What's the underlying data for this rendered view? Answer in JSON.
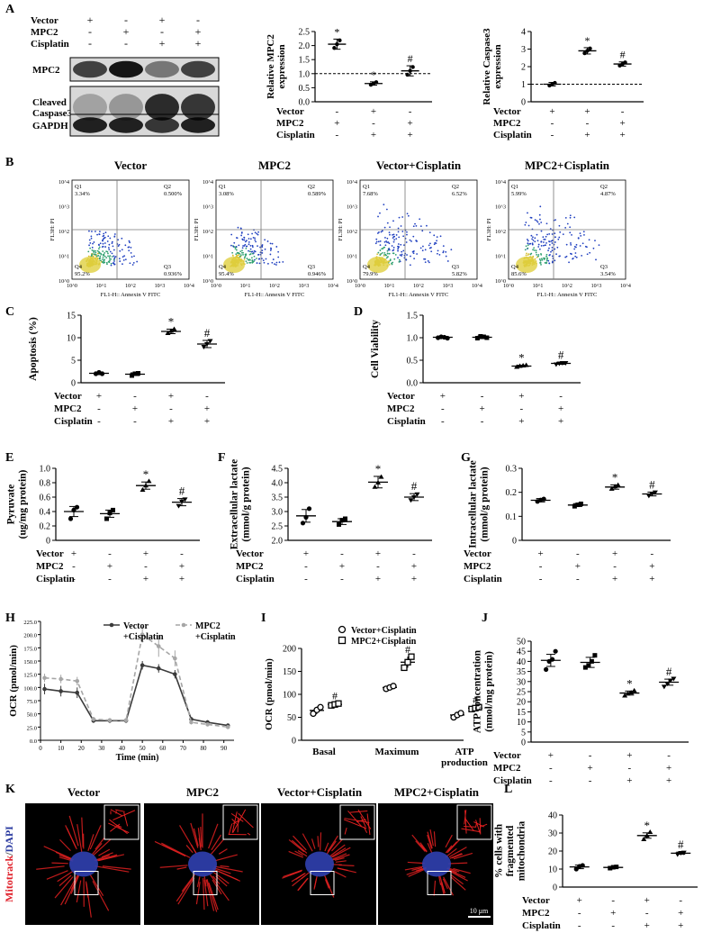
{
  "panels": {
    "A": {
      "letter": "A",
      "condition_labels": [
        "Vector",
        "MPC2",
        "Cisplatin"
      ],
      "blot_matrix": [
        [
          "+",
          "-",
          "+",
          "-"
        ],
        [
          "-",
          "+",
          "-",
          "+"
        ],
        [
          "-",
          "-",
          "+",
          "+"
        ]
      ],
      "blot_rows": [
        "MPC2",
        "Cleaved\nCaspase3",
        "GAPDH"
      ],
      "mpc2_chart": {
        "ylabel": "Relative MPC2\nexpression",
        "yticks": [
          "0.0",
          "0.5",
          "1.0",
          "1.5",
          "2.0",
          "2.5"
        ],
        "ylim": [
          0,
          2.5
        ],
        "values": [
          2.05,
          0.65,
          1.1
        ],
        "errors": [
          0.18,
          0.06,
          0.18
        ],
        "markers": [
          "*",
          "*",
          "#"
        ],
        "refline": 1.0,
        "matrix": [
          [
            "-",
            "+",
            "-"
          ],
          [
            "+",
            "-",
            "+"
          ],
          [
            "-",
            "+",
            "+"
          ]
        ]
      },
      "caspase_chart": {
        "ylabel": "Relative Caspase3\nexpression",
        "yticks": [
          "0",
          "1",
          "2",
          "3",
          "4"
        ],
        "ylim": [
          0,
          4
        ],
        "values": [
          1.0,
          2.9,
          2.15
        ],
        "errors": [
          0.1,
          0.18,
          0.12
        ],
        "markers": [
          "",
          "*",
          "#"
        ],
        "refline": 1.0,
        "matrix": [
          [
            "+",
            "+",
            "-"
          ],
          [
            "-",
            "-",
            "+"
          ],
          [
            "-",
            "+",
            "+"
          ]
        ]
      }
    },
    "B": {
      "letter": "B",
      "plots": [
        {
          "title": "Vector",
          "q1": "3.34%",
          "q2": "0.500%",
          "q4": "95.2%",
          "q3": "0.936%"
        },
        {
          "title": "MPC2",
          "q1": "3.08%",
          "q2": "0.589%",
          "q4": "95.4%",
          "q3": "0.946%"
        },
        {
          "title": "Vector+Cisplatin",
          "q1": "7.68%",
          "q2": "6.52%",
          "q4": "79.9%",
          "q3": "5.82%"
        },
        {
          "title": "MPC2+Cisplatin",
          "q1": "5.99%",
          "q2": "4.87%",
          "q4": "85.6%",
          "q3": "3.54%"
        }
      ],
      "xlabel": "FL1-H:: Annexin V FITC",
      "ylabel": "FL3H: PI",
      "quad_names": [
        "Q1",
        "Q2",
        "Q3",
        "Q4"
      ],
      "yticks": [
        "10^4",
        "10^3",
        "10^2",
        "10^1",
        "10^0"
      ],
      "xticks": [
        "10^0",
        "10^1",
        "10^2",
        "10^3",
        "10^4"
      ]
    },
    "C": {
      "letter": "C",
      "ylabel": "Apoptosis (%)",
      "yticks": [
        "0",
        "5",
        "10",
        "15"
      ],
      "ylim": [
        0,
        15
      ],
      "means": [
        2.1,
        1.9,
        11.4,
        8.6
      ],
      "errors": [
        0.3,
        0.3,
        0.5,
        0.8
      ],
      "markers": [
        "",
        "",
        "*",
        "#"
      ],
      "points": [
        [
          2.0,
          2.3,
          2.0
        ],
        [
          1.6,
          2.0,
          2.1
        ],
        [
          11.0,
          11.5,
          11.9
        ],
        [
          8.0,
          8.6,
          9.3
        ]
      ]
    },
    "D": {
      "letter": "D",
      "ylabel": "Cell Viability",
      "yticks": [
        "0.0",
        "0.5",
        "1.0",
        "1.5"
      ],
      "ylim": [
        0,
        1.5
      ],
      "means": [
        1.01,
        1.01,
        0.37,
        0.43
      ],
      "errors": [
        0.02,
        0.03,
        0.02,
        0.02
      ],
      "markers": [
        "",
        "",
        "*",
        "#"
      ],
      "points": [
        [
          1.0,
          1.02,
          1.01,
          0.99
        ],
        [
          0.99,
          1.03,
          1.02,
          1.0
        ],
        [
          0.35,
          0.37,
          0.38,
          0.39
        ],
        [
          0.41,
          0.43,
          0.44,
          0.44
        ]
      ]
    },
    "E": {
      "letter": "E",
      "ylabel": "Pyruvate\n(ug/mg protein)",
      "yticks": [
        "0",
        "0.2",
        "0.4",
        "0.6",
        "0.8",
        "1.0"
      ],
      "ylim": [
        0,
        1.0
      ],
      "means": [
        0.4,
        0.37,
        0.76,
        0.53
      ],
      "errors": [
        0.07,
        0.05,
        0.05,
        0.05
      ],
      "markers": [
        "",
        "",
        "*",
        "#"
      ],
      "points": [
        [
          0.3,
          0.42,
          0.46
        ],
        [
          0.3,
          0.38,
          0.42
        ],
        [
          0.7,
          0.76,
          0.82
        ],
        [
          0.48,
          0.54,
          0.57
        ]
      ]
    },
    "F": {
      "letter": "F",
      "ylabel": "Extracellular lactate\n(mmol/g protein)",
      "yticks": [
        "2.0",
        "2.5",
        "3.0",
        "3.5",
        "4.0",
        "4.5"
      ],
      "ylim": [
        2.0,
        4.5
      ],
      "means": [
        2.85,
        2.65,
        4.02,
        3.5
      ],
      "errors": [
        0.22,
        0.1,
        0.2,
        0.12
      ],
      "markers": [
        "",
        "",
        "*",
        "#"
      ],
      "points": [
        [
          2.6,
          2.8,
          3.1
        ],
        [
          2.55,
          2.7,
          2.75
        ],
        [
          3.85,
          4.0,
          4.2
        ],
        [
          3.4,
          3.5,
          3.6
        ]
      ]
    },
    "G": {
      "letter": "G",
      "ylabel": "Intracellular lactate\n(mmol/g protein)",
      "yticks": [
        "0",
        "0.1",
        "0.2",
        "0.3"
      ],
      "ylim": [
        0,
        0.3
      ],
      "means": [
        0.167,
        0.147,
        0.222,
        0.193
      ],
      "errors": [
        0.007,
        0.006,
        0.009,
        0.008
      ],
      "markers": [
        "",
        "",
        "*",
        "#"
      ],
      "points": [
        [
          0.162,
          0.168,
          0.172
        ],
        [
          0.142,
          0.148,
          0.152
        ],
        [
          0.214,
          0.224,
          0.23
        ],
        [
          0.186,
          0.194,
          0.2
        ]
      ]
    },
    "H": {
      "letter": "H",
      "ylabel": "OCR (pmol/min)",
      "xlabel": "Time (min)",
      "yticks": [
        "0",
        "25",
        "50",
        "75",
        "100",
        "125",
        "150",
        "175",
        "200",
        "225"
      ],
      "xticks": [
        "0",
        "10",
        "20",
        "30",
        "40",
        "50",
        "60",
        "70",
        "80",
        "90"
      ],
      "ylim": [
        0,
        225
      ],
      "xlim": [
        0,
        95
      ],
      "legend": [
        "Vector\n+Cisplatin",
        "MPC2\n+Cisplatin"
      ],
      "x": [
        2,
        10,
        18,
        26,
        34,
        42,
        50,
        58,
        66,
        74,
        82,
        92
      ],
      "series": [
        {
          "name": "Vector\n+Cisplatin",
          "values": [
            97,
            93,
            90,
            37,
            37,
            37,
            142,
            136,
            125,
            40,
            34,
            28
          ],
          "errors": [
            10,
            10,
            10,
            4,
            4,
            4,
            8,
            8,
            8,
            4,
            4,
            3
          ],
          "color": "#3b3b3b"
        },
        {
          "name": "MPC2\n+Cisplatin",
          "values": [
            118,
            116,
            112,
            40,
            38,
            38,
            200,
            178,
            155,
            34,
            30,
            25
          ],
          "errors": [
            8,
            8,
            8,
            4,
            3,
            3,
            15,
            20,
            15,
            4,
            3,
            3
          ],
          "color": "#a6a6a6"
        }
      ]
    },
    "I": {
      "letter": "I",
      "ylabel": "OCR (pmol/min)",
      "yticks": [
        "0",
        "50",
        "100",
        "150",
        "200"
      ],
      "ylim": [
        0,
        200
      ],
      "categories": [
        "Basal",
        "Maximum",
        "ATP\nproduction"
      ],
      "legend": [
        "Vector+Cisplatin",
        "MPC2+Cisplatin"
      ],
      "vec_means": [
        65,
        115,
        55
      ],
      "vec_errors": [
        8,
        3,
        5
      ],
      "mpc_means": [
        78,
        170,
        70
      ],
      "mpc_errors": [
        3,
        12,
        3
      ],
      "vec_points": [
        [
          58,
          66,
          72
        ],
        [
          112,
          115,
          118
        ],
        [
          50,
          55,
          59
        ]
      ],
      "mpc_points": [
        [
          76,
          78,
          80
        ],
        [
          158,
          170,
          182
        ],
        [
          68,
          70,
          72
        ]
      ],
      "markers": [
        "#",
        "#",
        "#"
      ]
    },
    "J": {
      "letter": "J",
      "ylabel": "ATP concentration\n(nmol/mg protein)",
      "yticks": [
        "0",
        "5",
        "10",
        "15",
        "20",
        "25",
        "30",
        "35",
        "40",
        "45",
        "50"
      ],
      "ylim": [
        0,
        50
      ],
      "means": [
        40.5,
        39.5,
        24.3,
        29.7
      ],
      "errors": [
        3.0,
        2.5,
        1.0,
        1.5
      ],
      "markers": [
        "",
        "",
        "*",
        "#"
      ],
      "points": [
        [
          36,
          40,
          41,
          45
        ],
        [
          37,
          38,
          40,
          43
        ],
        [
          23,
          24,
          24.5,
          25.5
        ],
        [
          27.5,
          29,
          30.5,
          31.5
        ]
      ]
    },
    "K": {
      "letter": "K",
      "titles": [
        "Vector",
        "MPC2",
        "Vector+Cisplatin",
        "MPC2+Cisplatin"
      ],
      "side_label_red": "Mitotrack",
      "side_label_sep": "/",
      "side_label_blue": "DAPI",
      "scalebar": "10 μm"
    },
    "L": {
      "letter": "L",
      "ylabel": "% cells with\nfragmented\nmitochondria",
      "yticks": [
        "0",
        "10",
        "20",
        "30",
        "40"
      ],
      "ylim": [
        0,
        40
      ],
      "means": [
        11.2,
        10.9,
        28.6,
        18.8
      ],
      "errors": [
        1.0,
        0.4,
        1.5,
        0.6
      ],
      "markers": [
        "",
        "",
        "*",
        "#"
      ],
      "points": [
        [
          10,
          11.5,
          12
        ],
        [
          10.5,
          11,
          11.2
        ],
        [
          26.5,
          28.5,
          30.5
        ],
        [
          18.2,
          19,
          19.2
        ]
      ]
    }
  },
  "bottom_conditions": {
    "labels": [
      "Vector",
      "MPC2",
      "Cisplatin"
    ],
    "matrix": [
      [
        "+",
        "-",
        "+",
        "-"
      ],
      [
        "-",
        "+",
        "-",
        "+"
      ],
      [
        "-",
        "-",
        "+",
        "+"
      ]
    ]
  },
  "colors": {
    "red": "#e0202a",
    "blue": "#2a3aa0",
    "darkline": "#333333",
    "lightline": "#a6a6a6"
  }
}
